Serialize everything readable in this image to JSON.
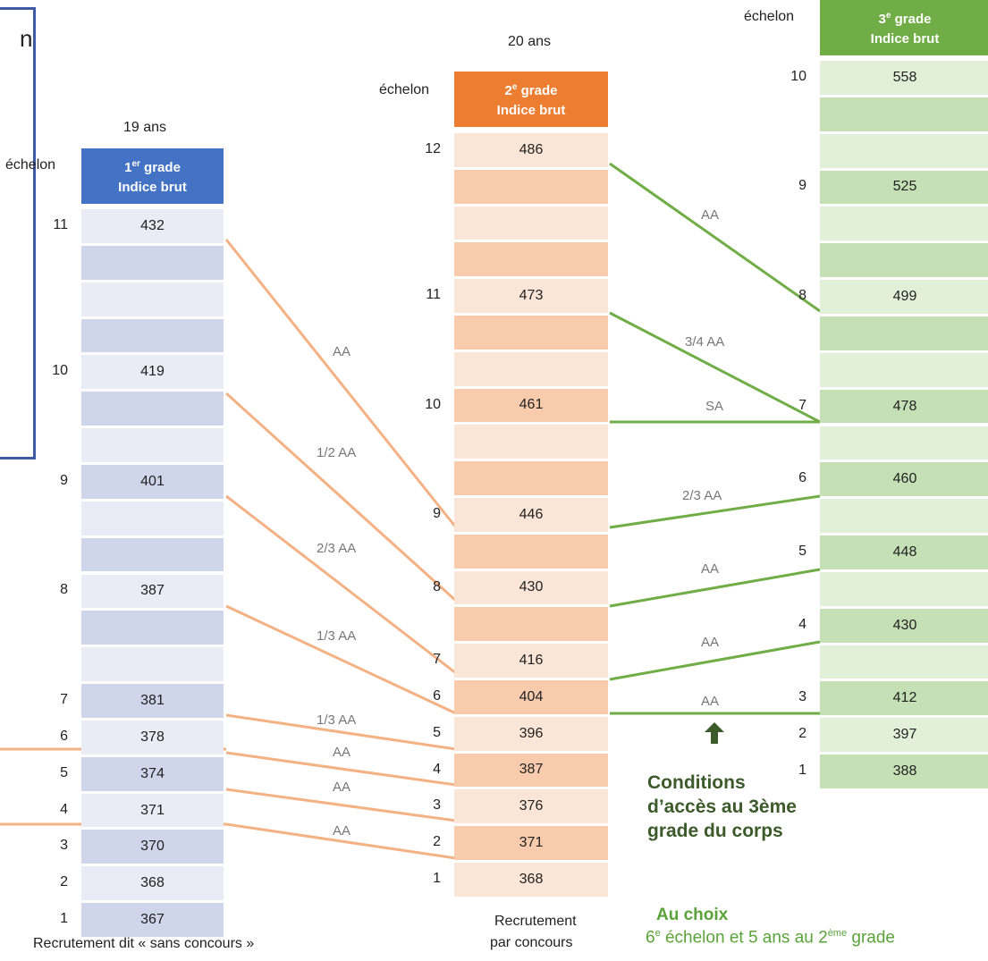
{
  "partial_left_text": "n",
  "grade1": {
    "years": "19 ans",
    "echelon_label": "échelon",
    "header_line1": "1",
    "header_sup": "er",
    "header_line1b": " grade",
    "header_line2": "Indice  brut",
    "footer": "Recrutement dit « sans concours »",
    "rows": [
      {
        "echelon": "11",
        "value": "432"
      },
      {
        "echelon": "",
        "value": ""
      },
      {
        "echelon": "",
        "value": ""
      },
      {
        "echelon": "",
        "value": ""
      },
      {
        "echelon": "10",
        "value": "419"
      },
      {
        "echelon": "",
        "value": ""
      },
      {
        "echelon": "",
        "value": ""
      },
      {
        "echelon": "9",
        "value": "401"
      },
      {
        "echelon": "",
        "value": ""
      },
      {
        "echelon": "",
        "value": ""
      },
      {
        "echelon": "8",
        "value": "387"
      },
      {
        "echelon": "",
        "value": ""
      },
      {
        "echelon": "",
        "value": ""
      },
      {
        "echelon": "7",
        "value": "381"
      },
      {
        "echelon": "6",
        "value": "378"
      },
      {
        "echelon": "5",
        "value": "374"
      },
      {
        "echelon": "4",
        "value": "371"
      },
      {
        "echelon": "3",
        "value": "370"
      },
      {
        "echelon": "2",
        "value": "368"
      },
      {
        "echelon": "1",
        "value": "367"
      }
    ]
  },
  "grade2": {
    "years": "20 ans",
    "echelon_label": "échelon",
    "header_line1": "2",
    "header_sup": "e",
    "header_line1b": " grade",
    "header_line2": "Indice  brut",
    "footer_line1": "Recrutement",
    "footer_line2": "par concours",
    "rows": [
      {
        "echelon": "12",
        "value": "486"
      },
      {
        "echelon": "",
        "value": ""
      },
      {
        "echelon": "",
        "value": ""
      },
      {
        "echelon": "",
        "value": ""
      },
      {
        "echelon": "11",
        "value": "473"
      },
      {
        "echelon": "",
        "value": ""
      },
      {
        "echelon": "",
        "value": ""
      },
      {
        "echelon": "10",
        "value": "461"
      },
      {
        "echelon": "",
        "value": ""
      },
      {
        "echelon": "",
        "value": ""
      },
      {
        "echelon": "9",
        "value": "446"
      },
      {
        "echelon": "",
        "value": ""
      },
      {
        "echelon": "8",
        "value": "430"
      },
      {
        "echelon": "",
        "value": ""
      },
      {
        "echelon": "7",
        "value": "416"
      },
      {
        "echelon": "6",
        "value": "404"
      },
      {
        "echelon": "5",
        "value": "396"
      },
      {
        "echelon": "4",
        "value": "387"
      },
      {
        "echelon": "3",
        "value": "376"
      },
      {
        "echelon": "2",
        "value": "371"
      },
      {
        "echelon": "1",
        "value": "368"
      }
    ]
  },
  "grade3": {
    "echelon_label": "échelon",
    "header_line1": "3",
    "header_sup": "e",
    "header_line1b": " grade",
    "header_line2": "Indice brut",
    "rows": [
      {
        "echelon": "10",
        "value": "558"
      },
      {
        "echelon": "",
        "value": ""
      },
      {
        "echelon": "",
        "value": ""
      },
      {
        "echelon": "9",
        "value": "525"
      },
      {
        "echelon": "",
        "value": ""
      },
      {
        "echelon": "",
        "value": ""
      },
      {
        "echelon": "8",
        "value": "499"
      },
      {
        "echelon": "",
        "value": ""
      },
      {
        "echelon": "",
        "value": ""
      },
      {
        "echelon": "7",
        "value": "478"
      },
      {
        "echelon": "",
        "value": ""
      },
      {
        "echelon": "6",
        "value": "460"
      },
      {
        "echelon": "",
        "value": ""
      },
      {
        "echelon": "5",
        "value": "448"
      },
      {
        "echelon": "",
        "value": ""
      },
      {
        "echelon": "4",
        "value": "430"
      },
      {
        "echelon": "",
        "value": ""
      },
      {
        "echelon": "3",
        "value": "412"
      },
      {
        "echelon": "2",
        "value": "397"
      },
      {
        "echelon": "1",
        "value": "388"
      }
    ]
  },
  "links_1_to_2": [
    "AA",
    "1/2 AA",
    "2/3 AA",
    "1/3 AA",
    "1/3 AA",
    "AA",
    "AA",
    "AA"
  ],
  "links_2_to_3": [
    "AA",
    "3/4 AA",
    "SA",
    "2/3 AA",
    "AA",
    "AA",
    "AA"
  ],
  "conditions": {
    "line1": "Conditions",
    "line2": "d’accès au 3ème",
    "line3": "grade du corps",
    "choice_title": "Au choix",
    "choice_a": "6",
    "choice_a_sup": "e",
    "choice_b": " échelon et 5 ans au 2",
    "choice_b_sup": "ème",
    "choice_c": " grade"
  },
  "colors": {
    "grade1_header": "#4472c4",
    "grade1_dark": "#cfd5ea",
    "grade1_light": "#e9ebf5",
    "grade2_header": "#ed7d31",
    "grade2_dark": "#f8cbad",
    "grade2_light": "#fbe5d6",
    "grade3_header": "#70ad47",
    "grade3_dark": "#c5e0b4",
    "grade3_light": "#e2f0d9",
    "line_orange": "#f4b183",
    "line_green": "#70ad47",
    "cond_text": "#3c5a2a"
  }
}
